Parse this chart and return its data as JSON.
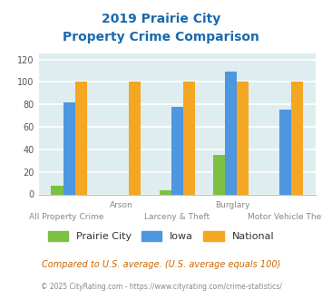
{
  "title_line1": "2019 Prairie City",
  "title_line2": "Property Crime Comparison",
  "categories": [
    "All Property Crime",
    "Arson",
    "Larceny & Theft",
    "Burglary",
    "Motor Vehicle Theft"
  ],
  "category_labels_top": [
    "",
    "Arson",
    "",
    "Burglary",
    ""
  ],
  "category_labels_bot": [
    "All Property Crime",
    "",
    "Larceny & Theft",
    "",
    "Motor Vehicle Theft"
  ],
  "prairie_city": [
    8,
    0,
    4,
    35,
    0
  ],
  "iowa": [
    82,
    0,
    78,
    109,
    75
  ],
  "national": [
    100,
    100,
    100,
    100,
    100
  ],
  "prairie_city_color": "#7dc142",
  "iowa_color": "#4d96e0",
  "national_color": "#f5a623",
  "bar_width": 0.22,
  "ylim": [
    0,
    125
  ],
  "yticks": [
    0,
    20,
    40,
    60,
    80,
    100,
    120
  ],
  "background_color": "#deedf0",
  "grid_color": "#ffffff",
  "title_color": "#1a6aad",
  "xlabel_top_color": "#888888",
  "xlabel_bot_color": "#888888",
  "legend_labels": [
    "Prairie City",
    "Iowa",
    "National"
  ],
  "footnote1": "Compared to U.S. average. (U.S. average equals 100)",
  "footnote2": "© 2025 CityRating.com - https://www.cityrating.com/crime-statistics/",
  "footnote1_color": "#cc6600",
  "footnote2_color": "#888888"
}
